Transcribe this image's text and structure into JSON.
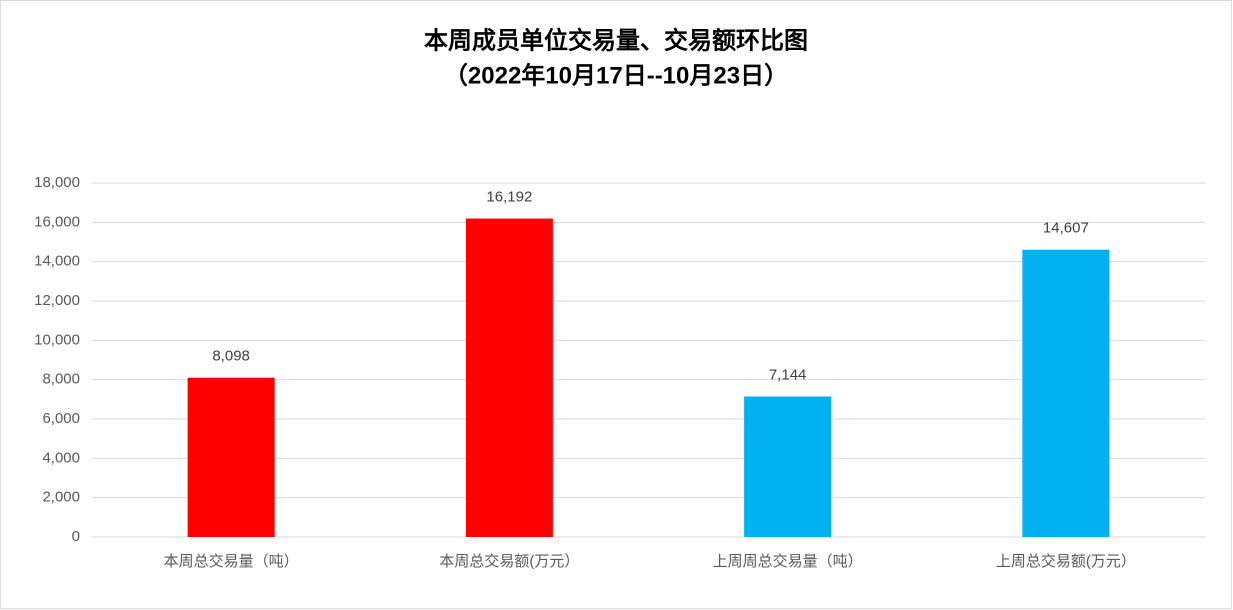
{
  "chart_data": {
    "type": "bar",
    "title": "本周成员单位交易量、交易额环比图",
    "subtitle": "（2022年10月17日--10月23日）",
    "categories": [
      "本周总交易量（吨）",
      "本周总交易额(万元）",
      "上周周总交易量（吨）",
      "上周总交易额(万元）"
    ],
    "values": [
      8098,
      16192,
      7144,
      14607
    ],
    "value_labels": [
      "8,098",
      "16,192",
      "7,144",
      "14,607"
    ],
    "colors": [
      "#ff0000",
      "#ff0000",
      "#00b0f0",
      "#00b0f0"
    ],
    "ylim": [
      0,
      18000
    ],
    "yticks": [
      0,
      {
        "value": 2000,
        "label": "2,000"
      },
      {
        "value": 4000,
        "label": "4,000"
      },
      {
        "value": 6000,
        "label": "6,000"
      },
      {
        "value": 8000,
        "label": "8,000"
      },
      {
        "value": 10000,
        "label": "10,000"
      },
      {
        "value": 12000,
        "label": "12,000"
      },
      {
        "value": 14000,
        "label": "14,000"
      },
      {
        "value": 16000,
        "label": "16,000"
      },
      {
        "value": 18000,
        "label": "18,000"
      }
    ],
    "grid": true
  }
}
